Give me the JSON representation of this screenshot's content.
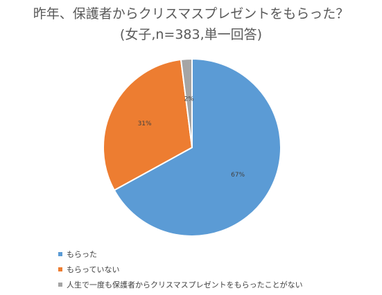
{
  "chart_data": {
    "type": "pie",
    "title": "昨年、保護者からクリスマスプレゼントをもらった？",
    "subtitle": "(女子,n=383,単一回答)",
    "categories": [
      "もらった",
      "もらっていない",
      "人生で一度も保護者からクリスマスプレゼントをもらったことがない"
    ],
    "values": [
      67,
      31,
      2
    ],
    "data_labels": [
      "67%",
      "31%",
      "2%"
    ],
    "colors": [
      "#5B9BD5",
      "#ED7D31",
      "#A5A5A5"
    ],
    "legend_position": "bottom"
  }
}
